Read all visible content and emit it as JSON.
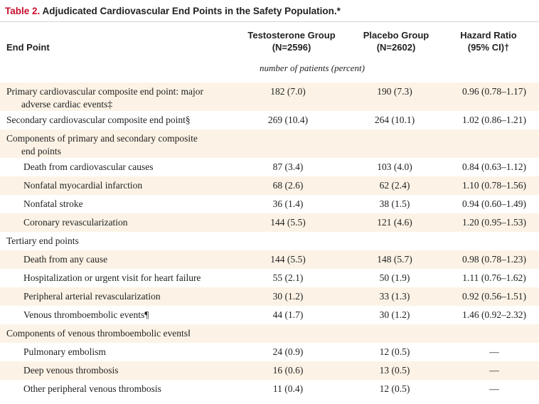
{
  "table": {
    "title_number": "Table 2.",
    "title_text": "Adjudicated Cardiovascular End Points in the Safety Population.*",
    "headers": {
      "end_point": "End Point",
      "testosterone_line1": "Testosterone Group",
      "testosterone_line2": "(N=2596)",
      "placebo_line1": "Placebo Group",
      "placebo_line2": "(N=2602)",
      "hazard_line1": "Hazard Ratio",
      "hazard_line2": "(95% CI)†"
    },
    "unit_label": "number of patients (percent)",
    "rows": [
      {
        "label": "Primary cardiovascular composite end point: major",
        "label2": "adverse cardiac events‡",
        "testosterone": "182 (7.0)",
        "placebo": "190 (7.3)",
        "hr": "0.96 (0.78–1.17)"
      },
      {
        "label": "Secondary cardiovascular composite end point§",
        "label2": "",
        "testosterone": "269 (10.4)",
        "placebo": "264 (10.1)",
        "hr": "1.02 (0.86–1.21)"
      },
      {
        "label": "Components of primary and secondary composite",
        "label2": "end points",
        "testosterone": "",
        "placebo": "",
        "hr": ""
      },
      {
        "label": "Death from cardiovascular causes",
        "label2": "",
        "testosterone": "87 (3.4)",
        "placebo": "103 (4.0)",
        "hr": "0.84 (0.63–1.12)"
      },
      {
        "label": "Nonfatal myocardial infarction",
        "label2": "",
        "testosterone": "68 (2.6)",
        "placebo": "62 (2.4)",
        "hr": "1.10 (0.78–1.56)"
      },
      {
        "label": "Nonfatal stroke",
        "label2": "",
        "testosterone": "36 (1.4)",
        "placebo": "38 (1.5)",
        "hr": "0.94 (0.60–1.49)"
      },
      {
        "label": "Coronary revascularization",
        "label2": "",
        "testosterone": "144 (5.5)",
        "placebo": "121 (4.6)",
        "hr": "1.20 (0.95–1.53)"
      },
      {
        "label": "Tertiary end points",
        "label2": "",
        "testosterone": "",
        "placebo": "",
        "hr": ""
      },
      {
        "label": "Death from any cause",
        "label2": "",
        "testosterone": "144 (5.5)",
        "placebo": "148 (5.7)",
        "hr": "0.98 (0.78–1.23)"
      },
      {
        "label": "Hospitalization or urgent visit for heart failure",
        "label2": "",
        "testosterone": "55 (2.1)",
        "placebo": "50 (1.9)",
        "hr": "1.11 (0.76–1.62)"
      },
      {
        "label": "Peripheral arterial revascularization",
        "label2": "",
        "testosterone": "30 (1.2)",
        "placebo": "33 (1.3)",
        "hr": "0.92 (0.56–1.51)"
      },
      {
        "label": "Venous thromboembolic events¶",
        "label2": "",
        "testosterone": "44 (1.7)",
        "placebo": "30 (1.2)",
        "hr": "1.46 (0.92–2.32)"
      },
      {
        "label": "Components of venous thromboembolic events‖",
        "label2": "",
        "testosterone": "",
        "placebo": "",
        "hr": ""
      },
      {
        "label": "Pulmonary embolism",
        "label2": "",
        "testosterone": "24 (0.9)",
        "placebo": "12 (0.5)",
        "hr": "—"
      },
      {
        "label": "Deep venous thrombosis",
        "label2": "",
        "testosterone": "16 (0.6)",
        "placebo": "13 (0.5)",
        "hr": "—"
      },
      {
        "label": "Other peripheral venous thrombosis",
        "label2": "",
        "testosterone": "11 (0.4)",
        "placebo": "12 (0.5)",
        "hr": "—"
      }
    ]
  },
  "colors": {
    "title_accent": "#c8102e",
    "row_shade": "#fcf3e6",
    "text": "#222222"
  }
}
